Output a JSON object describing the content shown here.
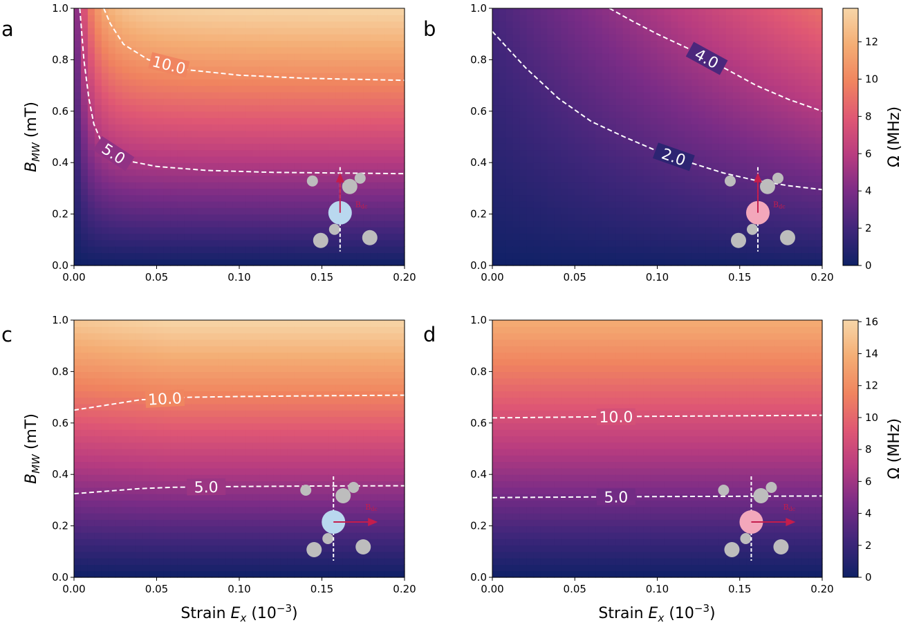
{
  "figure": {
    "x_axis_label_prefix": "Strain ",
    "x_axis_label_var": "E",
    "x_axis_label_sub": "x",
    "x_axis_label_suffix": " (10",
    "x_axis_label_exp": "−3",
    "x_axis_label_close": ")",
    "y_axis_label_var": "B",
    "y_axis_label_sub": "MW",
    "y_axis_label_suffix": " (mT)",
    "colorbar_label": "Ω (MHz)",
    "bdc_label": "B",
    "bdc_label_sub": "dc",
    "colors": {
      "colormap": [
        "#0f2166",
        "#40267a",
        "#7a2c86",
        "#b83c80",
        "#df5774",
        "#f0845f",
        "#f4ad74",
        "#f7d6a8"
      ],
      "contour": "#ffffff",
      "arrow": "#c41d4c",
      "defect_light": "#b9d8ef",
      "defect_pink": "#f3a7bb",
      "atom": "#bdbdbd"
    }
  },
  "chart_data": [
    {
      "panel": "a",
      "type": "heatmap",
      "xlim": [
        0,
        0.2
      ],
      "ylim": [
        0,
        1.0
      ],
      "x_ticks": [
        "0.00",
        "0.05",
        "0.10",
        "0.15",
        "0.20"
      ],
      "y_ticks": [
        "0.0",
        "0.2",
        "0.4",
        "0.6",
        "0.8",
        "1.0"
      ],
      "value_range": [
        0,
        13.8
      ],
      "field_direction": "vertical",
      "defect_color": "light-blue",
      "contours": [
        {
          "level": 5.0,
          "label": "5.0",
          "points": [
            [
              0.0035,
              1.0
            ],
            [
              0.006,
              0.8
            ],
            [
              0.009,
              0.65
            ],
            [
              0.012,
              0.55
            ],
            [
              0.018,
              0.46
            ],
            [
              0.03,
              0.41
            ],
            [
              0.05,
              0.385
            ],
            [
              0.08,
              0.37
            ],
            [
              0.12,
              0.362
            ],
            [
              0.2,
              0.357
            ]
          ]
        },
        {
          "level": 10.0,
          "label": "10.0",
          "points": [
            [
              0.018,
              1.0
            ],
            [
              0.022,
              0.94
            ],
            [
              0.03,
              0.86
            ],
            [
              0.045,
              0.8
            ],
            [
              0.07,
              0.76
            ],
            [
              0.1,
              0.74
            ],
            [
              0.14,
              0.728
            ],
            [
              0.2,
              0.72
            ]
          ]
        }
      ]
    },
    {
      "panel": "b",
      "type": "heatmap",
      "xlim": [
        0,
        0.2
      ],
      "ylim": [
        0,
        1.0
      ],
      "x_ticks": [
        "0.00",
        "0.05",
        "0.10",
        "0.15",
        "0.20"
      ],
      "y_ticks": [
        "0.0",
        "0.2",
        "0.4",
        "0.6",
        "0.8",
        "1.0"
      ],
      "value_range": [
        0,
        13.8
      ],
      "colorbar_ticks": [
        0,
        2,
        4,
        6,
        8,
        10,
        12
      ],
      "field_direction": "vertical",
      "defect_color": "pink",
      "contours": [
        {
          "level": 2.0,
          "label": "2.0",
          "points": [
            [
              0.0,
              0.91
            ],
            [
              0.02,
              0.77
            ],
            [
              0.04,
              0.65
            ],
            [
              0.06,
              0.56
            ],
            [
              0.08,
              0.5
            ],
            [
              0.1,
              0.445
            ],
            [
              0.12,
              0.4
            ],
            [
              0.14,
              0.36
            ],
            [
              0.16,
              0.33
            ],
            [
              0.18,
              0.31
            ],
            [
              0.2,
              0.295
            ]
          ]
        },
        {
          "level": 4.0,
          "label": "4.0",
          "points": [
            [
              0.071,
              1.0
            ],
            [
              0.085,
              0.95
            ],
            [
              0.1,
              0.9
            ],
            [
              0.12,
              0.84
            ],
            [
              0.14,
              0.77
            ],
            [
              0.16,
              0.7
            ],
            [
              0.18,
              0.645
            ],
            [
              0.2,
              0.6
            ]
          ]
        }
      ]
    },
    {
      "panel": "c",
      "type": "heatmap",
      "xlim": [
        0,
        0.2
      ],
      "ylim": [
        0,
        1.0
      ],
      "x_ticks": [
        "0.00",
        "0.05",
        "0.10",
        "0.15",
        "0.20"
      ],
      "y_ticks": [
        "0.0",
        "0.2",
        "0.4",
        "0.6",
        "0.8",
        "1.0"
      ],
      "value_range": [
        0,
        13.8
      ],
      "field_direction": "horizontal",
      "defect_color": "light-blue",
      "contours": [
        {
          "level": 5.0,
          "label": "5.0",
          "points": [
            [
              0.0,
              0.325
            ],
            [
              0.02,
              0.335
            ],
            [
              0.04,
              0.345
            ],
            [
              0.06,
              0.35
            ],
            [
              0.1,
              0.353
            ],
            [
              0.15,
              0.355
            ],
            [
              0.2,
              0.356
            ]
          ]
        },
        {
          "level": 10.0,
          "label": "10.0",
          "points": [
            [
              0.0,
              0.65
            ],
            [
              0.02,
              0.67
            ],
            [
              0.04,
              0.69
            ],
            [
              0.07,
              0.7
            ],
            [
              0.1,
              0.703
            ],
            [
              0.15,
              0.706
            ],
            [
              0.2,
              0.708
            ]
          ]
        }
      ]
    },
    {
      "panel": "d",
      "type": "heatmap",
      "xlim": [
        0,
        0.2
      ],
      "ylim": [
        0,
        1.0
      ],
      "x_ticks": [
        "0.00",
        "0.05",
        "0.10",
        "0.15",
        "0.20"
      ],
      "y_ticks": [
        "0.0",
        "0.2",
        "0.4",
        "0.6",
        "0.8",
        "1.0"
      ],
      "value_range": [
        0,
        16.1
      ],
      "colorbar_ticks": [
        0,
        2,
        4,
        6,
        8,
        10,
        12,
        14,
        16
      ],
      "field_direction": "horizontal",
      "defect_color": "pink",
      "contours": [
        {
          "level": 5.0,
          "label": "5.0",
          "points": [
            [
              0.0,
              0.31
            ],
            [
              0.05,
              0.312
            ],
            [
              0.1,
              0.314
            ],
            [
              0.15,
              0.315
            ],
            [
              0.2,
              0.316
            ]
          ]
        },
        {
          "level": 10.0,
          "label": "10.0",
          "points": [
            [
              0.0,
              0.62
            ],
            [
              0.05,
              0.623
            ],
            [
              0.1,
              0.626
            ],
            [
              0.15,
              0.628
            ],
            [
              0.2,
              0.63
            ]
          ]
        }
      ]
    }
  ]
}
